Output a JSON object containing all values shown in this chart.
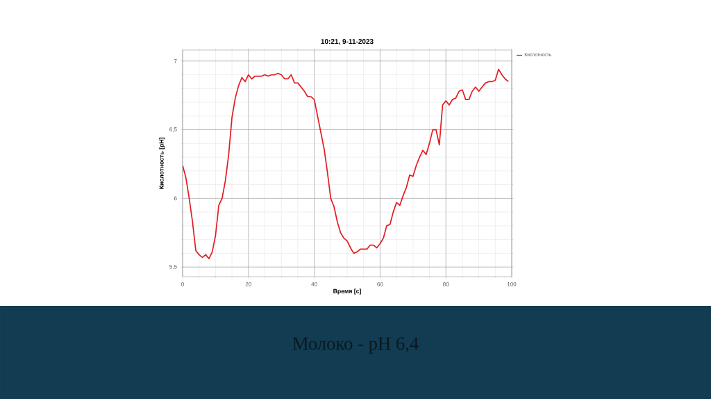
{
  "chart_data": {
    "type": "line",
    "title": "10:21, 9-11-2023",
    "xlabel": "Время [с]",
    "ylabel": "Кислотность [pH]",
    "annotations": [
      "Молоко - pH 6,4"
    ],
    "x": [
      0,
      1,
      2,
      3,
      4,
      5,
      6,
      7,
      8,
      9,
      10,
      11,
      12,
      13,
      14,
      15,
      16,
      17,
      18,
      19,
      20,
      21,
      22,
      23,
      24,
      25,
      26,
      27,
      28,
      29,
      30,
      31,
      32,
      33,
      34,
      35,
      36,
      37,
      38,
      39,
      40,
      41,
      42,
      43,
      44,
      45,
      46,
      47,
      48,
      49,
      50,
      51,
      52,
      53,
      54,
      55,
      56,
      57,
      58,
      59,
      60,
      61,
      62,
      63,
      64,
      65,
      66,
      67,
      68,
      69,
      70,
      71,
      72,
      73,
      74,
      75,
      76,
      77,
      78,
      79,
      80,
      81,
      82,
      83,
      84,
      85,
      86,
      87,
      88,
      89,
      90,
      91,
      92,
      93,
      94,
      95,
      96,
      97,
      98,
      99
    ],
    "series": [
      {
        "name": "Кислотность",
        "color": "#e31e24",
        "values": [
          6.24,
          6.15,
          6.0,
          5.83,
          5.62,
          5.59,
          5.57,
          5.59,
          5.56,
          5.61,
          5.73,
          5.95,
          6.0,
          6.13,
          6.32,
          6.59,
          6.73,
          6.82,
          6.88,
          6.85,
          6.9,
          6.87,
          6.89,
          6.89,
          6.89,
          6.9,
          6.89,
          6.9,
          6.9,
          6.91,
          6.9,
          6.87,
          6.87,
          6.9,
          6.84,
          6.84,
          6.81,
          6.78,
          6.74,
          6.74,
          6.72,
          6.6,
          6.48,
          6.36,
          6.19,
          6.0,
          5.94,
          5.83,
          5.75,
          5.71,
          5.69,
          5.64,
          5.6,
          5.61,
          5.63,
          5.63,
          5.63,
          5.66,
          5.66,
          5.64,
          5.67,
          5.71,
          5.8,
          5.81,
          5.9,
          5.97,
          5.95,
          6.02,
          6.08,
          6.17,
          6.16,
          6.24,
          6.3,
          6.35,
          6.32,
          6.4,
          6.5,
          6.5,
          6.39,
          6.68,
          6.71,
          6.68,
          6.72,
          6.73,
          6.78,
          6.79,
          6.72,
          6.72,
          6.78,
          6.81,
          6.78,
          6.81,
          6.84,
          6.85,
          6.85,
          6.86,
          6.94,
          6.9,
          6.87,
          6.85
        ]
      }
    ],
    "xlim": [
      0,
      100
    ],
    "ylim": [
      5.43,
      7.08
    ],
    "xticks": [
      0,
      20,
      40,
      60,
      80,
      100
    ],
    "yticks": [
      {
        "value": 5.5,
        "label": "5,5"
      },
      6,
      {
        "value": 6.5,
        "label": "6,5"
      },
      7
    ],
    "grid": true,
    "legend": "top right",
    "marker": "none",
    "line_style": "solid"
  }
}
